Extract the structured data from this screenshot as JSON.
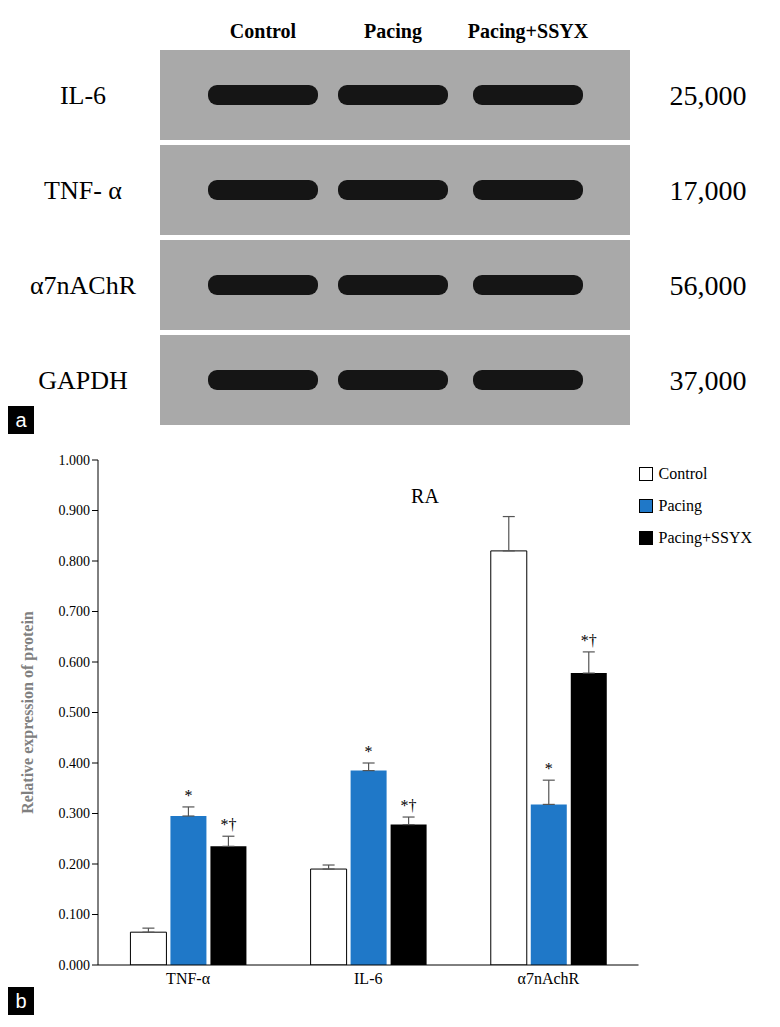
{
  "blot": {
    "panel_label": "a",
    "lanes": [
      "Control",
      "Pacing",
      "Pacing+SSYX"
    ],
    "rows": [
      {
        "label": "IL-6",
        "mw": "25,000"
      },
      {
        "label": "TNF- α",
        "mw": "17,000"
      },
      {
        "label": "α7nAChR",
        "mw": "56,000"
      },
      {
        "label": "GAPDH",
        "mw": "37,000"
      }
    ]
  },
  "chart_data": {
    "type": "bar",
    "panel_label": "b",
    "title": "RA",
    "y_label": "Relative expression of protein",
    "categories": [
      "TNF-α",
      "IL-6",
      "α7nAchR"
    ],
    "ylim": [
      0,
      1
    ],
    "yticks": [
      {
        "value": 0,
        "label": "0.000"
      },
      {
        "value": 0.1,
        "label": "0.100"
      },
      {
        "value": 0.2,
        "label": "0.200"
      },
      {
        "value": 0.3,
        "label": "0.300"
      },
      {
        "value": 0.4,
        "label": "0.400"
      },
      {
        "value": 0.5,
        "label": "0.500"
      },
      {
        "value": 0.6,
        "label": "0.600"
      },
      {
        "value": 0.7,
        "label": "0.700"
      },
      {
        "value": 0.8,
        "label": "0.800"
      },
      {
        "value": 0.9,
        "label": "0.900"
      },
      {
        "value": 1,
        "label": "1.000"
      }
    ],
    "grid": false,
    "legend": "upper right",
    "series": [
      {
        "name": "Control",
        "color": "#ffffff",
        "values": [
          0.065,
          0.19,
          0.82
        ],
        "errors": [
          0.008,
          0.008,
          0.068
        ]
      },
      {
        "name": "Pacing",
        "color": "#1f78c8",
        "values": [
          0.295,
          0.385,
          0.318
        ],
        "errors": [
          0.018,
          0.015,
          0.048
        ],
        "annotations": [
          "*",
          "*",
          "*"
        ]
      },
      {
        "name": "Pacing+SSYX",
        "color": "#000000",
        "values": [
          0.235,
          0.278,
          0.578
        ],
        "errors": [
          0.02,
          0.015,
          0.042
        ],
        "annotations": [
          "*†",
          "*†",
          "*†"
        ]
      }
    ]
  }
}
